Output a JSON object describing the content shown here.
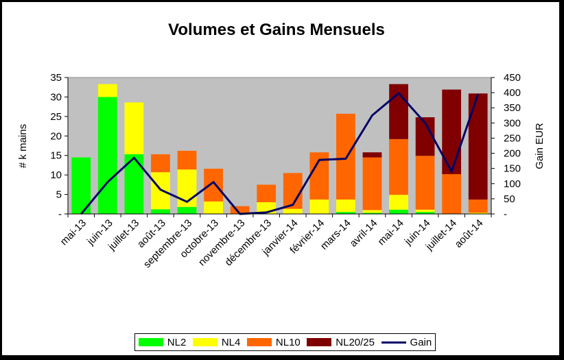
{
  "chart_data": {
    "type": "bar",
    "title": "Volumes et Gains Mensuels",
    "ylabel": "# k mains",
    "y2label": "Gain EUR",
    "ylim": [
      0,
      35
    ],
    "yticks": [
      "-",
      "5",
      "10",
      "15",
      "20",
      "25",
      "30",
      "35"
    ],
    "y2lim": [
      0,
      450
    ],
    "y2ticks": [
      "-",
      "50",
      "100",
      "150",
      "200",
      "250",
      "300",
      "350",
      "400",
      "450"
    ],
    "categories": [
      "mai-13",
      "juin-13",
      "juillet-13",
      "août-13",
      "septembre-13",
      "octobre-13",
      "novembre-13",
      "décembre-13",
      "janvier-14",
      "février-14",
      "mars-14",
      "avril-14",
      "mai-14",
      "juin-14",
      "juillet-14",
      "août-14"
    ],
    "stacked_series": [
      {
        "name": "NL2",
        "color": "#00ff00",
        "values": [
          14.5,
          30,
          15.3,
          1.2,
          1.8,
          0,
          0,
          0,
          0,
          0,
          0.5,
          0.3,
          1.1,
          0.5,
          0,
          0
        ]
      },
      {
        "name": "NL4",
        "color": "#ffff00",
        "values": [
          0,
          3.3,
          13.3,
          9.5,
          9.6,
          3.2,
          0,
          3.0,
          1.3,
          3.7,
          3.2,
          0.7,
          3.8,
          0.6,
          0,
          0.3
        ]
      },
      {
        "name": "NL10",
        "color": "#ff6600",
        "values": [
          0,
          0,
          0,
          4.6,
          4.8,
          8.4,
          2.0,
          4.5,
          9.2,
          12.1,
          22.0,
          13.5,
          14.3,
          13.8,
          10.2,
          3.4
        ]
      },
      {
        "name": "NL20/25",
        "color": "#800000",
        "values": [
          0,
          0,
          0,
          0,
          0,
          0,
          0,
          0,
          0,
          0,
          0,
          1.3,
          14.1,
          9.9,
          21.7,
          27.2
        ]
      }
    ],
    "line_series": {
      "name": "Gain",
      "color": "#000066",
      "axis": "right",
      "values": [
        0,
        105,
        185,
        80,
        40,
        105,
        0,
        5,
        30,
        178,
        182,
        325,
        398,
        300,
        140,
        395
      ]
    },
    "background": "#c0c0c0",
    "legend_position": "bottom"
  }
}
